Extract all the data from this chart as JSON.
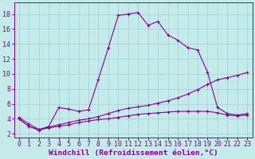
{
  "background_color": "#c5eaea",
  "grid_color": "#9ecece",
  "line_color": "#880099",
  "xlabel": "Windchill (Refroidissement éolien,°C)",
  "xlabel_fontsize": 6.8,
  "tick_fontsize": 6.0,
  "ytick_labels": [
    2,
    4,
    6,
    8,
    10,
    12,
    14,
    16,
    18
  ],
  "xtick_labels": [
    0,
    1,
    2,
    3,
    4,
    5,
    6,
    7,
    8,
    9,
    10,
    11,
    12,
    13,
    14,
    15,
    16,
    17,
    18,
    19,
    20,
    21,
    22,
    23
  ],
  "xlim": [
    -0.5,
    23.5
  ],
  "ylim": [
    1.5,
    19.5
  ],
  "s1_x": [
    0,
    1,
    2,
    3,
    4,
    5,
    6,
    7,
    8,
    9,
    10,
    11,
    12,
    13,
    14,
    15,
    16,
    17,
    18,
    19,
    20,
    21,
    22,
    23
  ],
  "s1_y": [
    4.0,
    3.0,
    2.5,
    3.0,
    5.5,
    5.3,
    5.0,
    5.2,
    9.3,
    13.5,
    17.8,
    18.0,
    18.2,
    16.5,
    17.0,
    15.2,
    14.5,
    13.5,
    13.2,
    10.2,
    5.5,
    4.7,
    4.5,
    4.7
  ],
  "s2_x": [
    0,
    1,
    2,
    3,
    4,
    5,
    6,
    7,
    8,
    9,
    10,
    11,
    12,
    13,
    14,
    15,
    16,
    17,
    18,
    19,
    20,
    21,
    22,
    23
  ],
  "s2_y": [
    4.2,
    3.3,
    2.6,
    2.9,
    3.2,
    3.5,
    3.8,
    4.0,
    4.3,
    4.7,
    5.1,
    5.4,
    5.6,
    5.8,
    6.1,
    6.4,
    6.8,
    7.3,
    7.9,
    8.6,
    9.2,
    9.5,
    9.8,
    10.2
  ],
  "s3_x": [
    0,
    1,
    2,
    3,
    4,
    5,
    6,
    7,
    8,
    9,
    10,
    11,
    12,
    13,
    14,
    15,
    16,
    17,
    18,
    19,
    20,
    21,
    22,
    23
  ],
  "s3_y": [
    4.0,
    3.0,
    2.5,
    2.8,
    3.0,
    3.2,
    3.5,
    3.7,
    3.9,
    4.0,
    4.2,
    4.4,
    4.6,
    4.7,
    4.8,
    4.9,
    5.0,
    5.0,
    5.0,
    5.0,
    4.8,
    4.5,
    4.4,
    4.5
  ]
}
